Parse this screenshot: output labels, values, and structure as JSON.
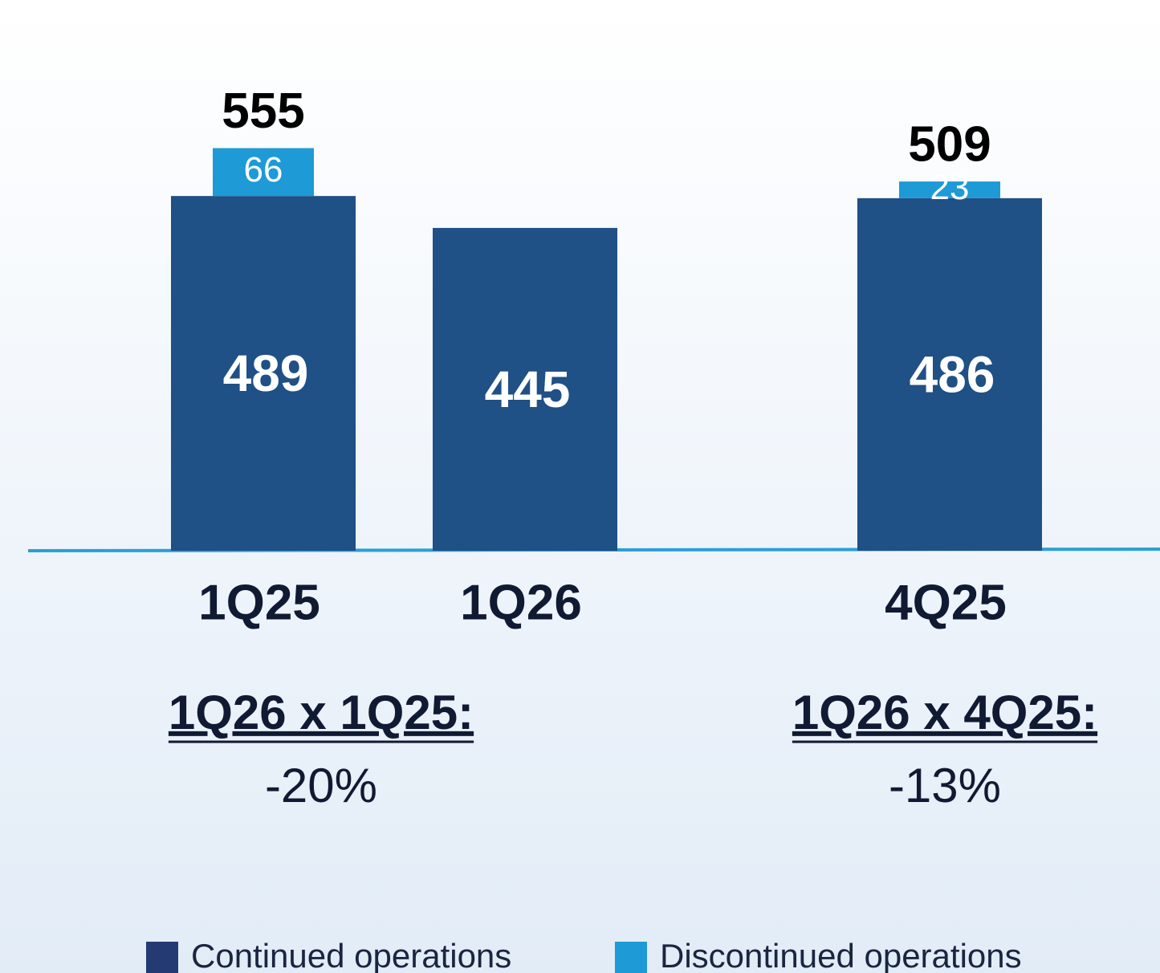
{
  "chart_data": {
    "type": "stacked_bar",
    "categories": [
      "1Q25",
      "1Q26",
      "4Q25"
    ],
    "series": [
      {
        "name": "Continued operations",
        "color": "#1f5086",
        "legend_color": "#243a73",
        "values": [
          489,
          445,
          486
        ]
      },
      {
        "name": "Discontinued operations",
        "color": "#1e9ad6",
        "legend_color": "#1e9ad6",
        "values": [
          66,
          null,
          23
        ]
      }
    ],
    "totals": [
      555,
      null,
      509
    ],
    "ylim": [
      0,
      560
    ],
    "annotations": [
      {
        "title": "1Q26 x 1Q25:",
        "value": "-20%"
      },
      {
        "title": "1Q26 x 4Q25:",
        "value": "-13%"
      }
    ],
    "legend": "bottom"
  }
}
